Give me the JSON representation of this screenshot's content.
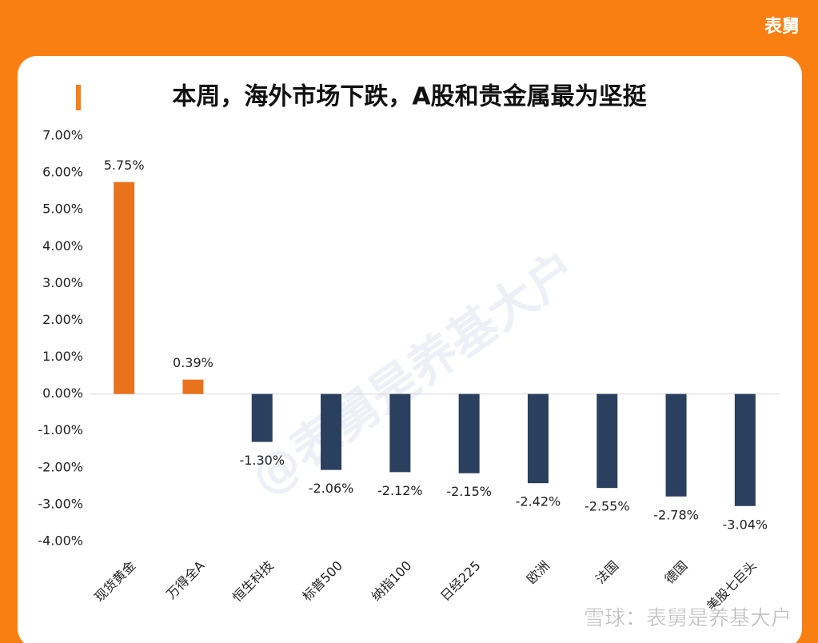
{
  "brand": "表舅",
  "watermark": "@表舅是养基大户",
  "footer": "雪球：表舅是养基大户",
  "chart_data": {
    "type": "bar",
    "title": "本周，海外市场下跌，A股和贵金属最为坚挺",
    "categories": [
      "现货黄金",
      "万得全A",
      "恒生科技",
      "标普500",
      "纳指100",
      "日经225",
      "欧洲",
      "法国",
      "德国",
      "美股七巨头"
    ],
    "values": [
      5.75,
      0.39,
      -1.3,
      -2.06,
      -2.12,
      -2.15,
      -2.42,
      -2.55,
      -2.78,
      -3.04
    ],
    "value_labels": [
      "5.75%",
      "0.39%",
      "-1.30%",
      "-2.06%",
      "-2.12%",
      "-2.15%",
      "-2.42%",
      "-2.55%",
      "-2.78%",
      "-3.04%"
    ],
    "colors": [
      "#e8731c",
      "#e8731c",
      "#2b3f5e",
      "#2b3f5e",
      "#2b3f5e",
      "#2b3f5e",
      "#2b3f5e",
      "#2b3f5e",
      "#2b3f5e",
      "#2b3f5e"
    ],
    "ylim": [
      -4,
      7
    ],
    "yticks": [
      {
        "value": -4,
        "label": "-4.00%"
      },
      {
        "value": -3,
        "label": "-3.00%"
      },
      {
        "value": -2,
        "label": "-2.00%"
      },
      {
        "value": -1,
        "label": "-1.00%"
      },
      {
        "value": 0,
        "label": "0.00%"
      },
      {
        "value": 1,
        "label": "1.00%"
      },
      {
        "value": 2,
        "label": "2.00%"
      },
      {
        "value": 3,
        "label": "3.00%"
      },
      {
        "value": 4,
        "label": "4.00%"
      },
      {
        "value": 5,
        "label": "5.00%"
      },
      {
        "value": 6,
        "label": "6.00%"
      },
      {
        "value": 7,
        "label": "7.00%"
      }
    ],
    "grid": false
  }
}
